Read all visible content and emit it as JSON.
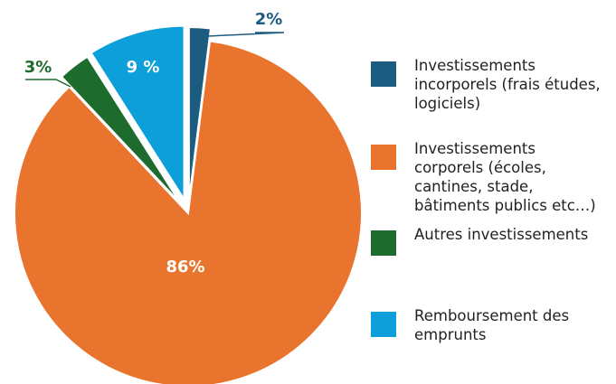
{
  "chart_data": {
    "type": "pie",
    "categories": [
      "Investissements incorporels (frais études, logiciels)",
      "Investissements corporels (écoles, cantines, stade, bâtiments publics etc…)",
      "Autres investissements",
      "Remboursement des emprunts"
    ],
    "values": [
      2,
      86,
      3,
      9
    ],
    "value_labels": [
      "2%",
      "86%",
      "3%",
      "9 %"
    ],
    "colors": [
      "#1b5c80",
      "#e8742e",
      "#1e6b2e",
      "#0d9fd9"
    ]
  }
}
